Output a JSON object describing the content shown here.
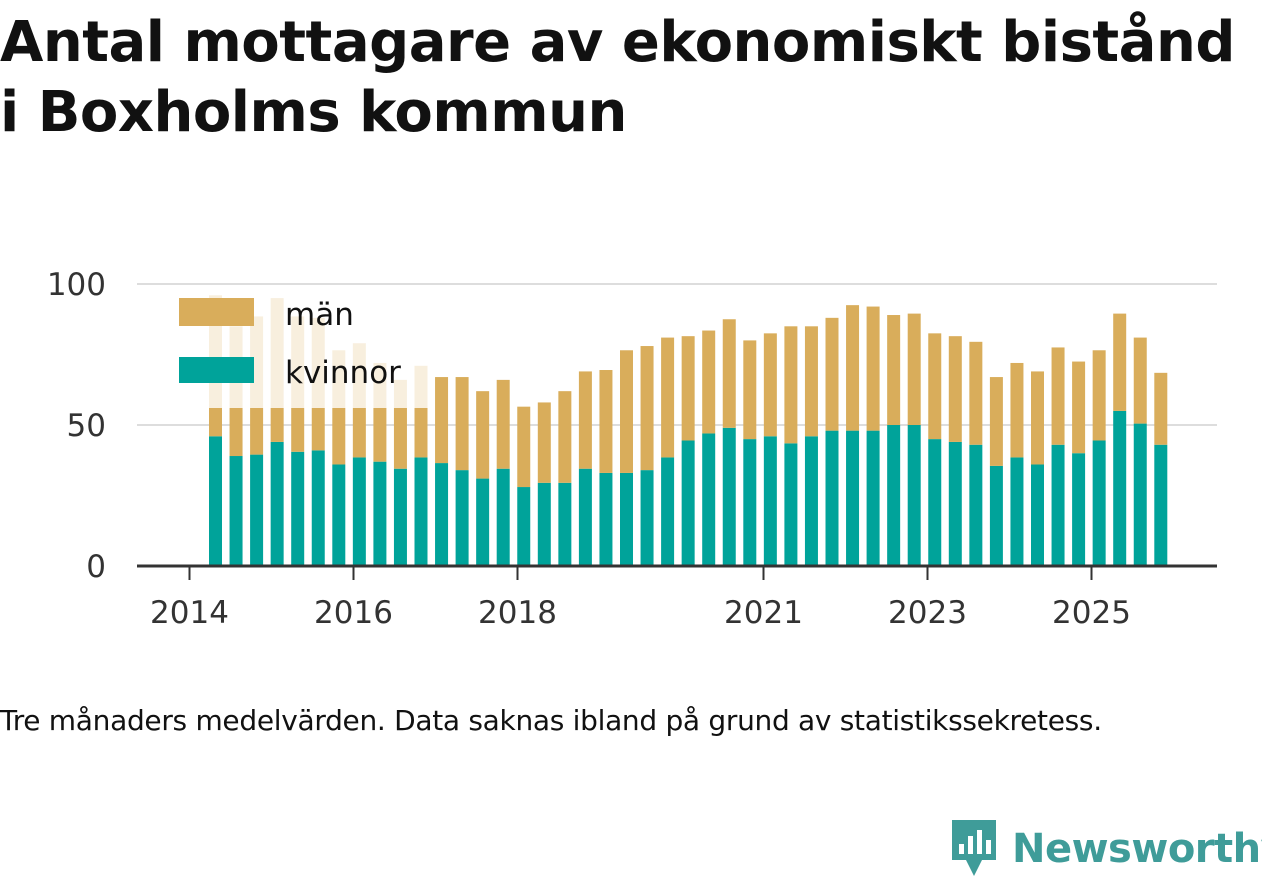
{
  "title": "Antal mottagare av ekonomiskt bistånd i Boxholms kommun",
  "note": "Tre månaders medelvärden. Data saknas ibland på grund av statistikssekretess.",
  "brand": {
    "name": "Newsworthy",
    "color": "#3f9c99"
  },
  "colors": {
    "man": "#d9ad5b",
    "kvinnor": "#00a39a",
    "grid": "#dddddd",
    "axis": "#333333"
  },
  "chart_data": {
    "type": "bar",
    "stacked": true,
    "title": "Antal mottagare av ekonomiskt bistånd i Boxholms kommun",
    "xlabel": "",
    "ylabel": "",
    "ylim": [
      0,
      100
    ],
    "yticks": [
      0,
      50,
      100
    ],
    "xticks": [
      {
        "label": "2014",
        "pos": 0
      },
      {
        "label": "2016",
        "pos": 8
      },
      {
        "label": "2018",
        "pos": 16
      },
      {
        "label": "2021",
        "pos": 28
      },
      {
        "label": "2023",
        "pos": 36
      },
      {
        "label": "2025",
        "pos": 44
      }
    ],
    "legend": {
      "placement": "top-left",
      "entries": [
        "män",
        "kvinnor"
      ]
    },
    "series": [
      {
        "name": "kvinnor",
        "color": "#00a39a",
        "values": [
          46,
          39,
          39.5,
          44,
          40.5,
          41,
          36,
          38.5,
          37,
          34.5,
          38.5,
          36.5,
          34,
          31,
          34.5,
          28,
          29.5,
          29.5,
          34.5,
          33,
          33,
          34,
          38.5,
          44.5,
          47,
          49,
          45,
          46,
          43.5,
          46,
          48,
          48,
          48,
          50,
          50,
          45,
          44,
          43,
          35.5,
          38.5,
          36,
          43,
          40,
          44.5,
          55,
          50.5,
          43
        ]
      },
      {
        "name": "män",
        "color": "#d9ad5b",
        "values": [
          50,
          46,
          49,
          51,
          48,
          47,
          40.5,
          40.5,
          35,
          31.5,
          32.5,
          30.5,
          33,
          31,
          31.5,
          28.5,
          28.5,
          32.5,
          34.5,
          36.5,
          43.5,
          44,
          42.5,
          37,
          36.5,
          38.5,
          35,
          36.5,
          41.5,
          39,
          40,
          44.5,
          44,
          39,
          39.5,
          37.5,
          37.5,
          36.5,
          31.5,
          33.5,
          33,
          34.5,
          32.5,
          32,
          34.5,
          30.5,
          25.5
        ]
      }
    ]
  }
}
